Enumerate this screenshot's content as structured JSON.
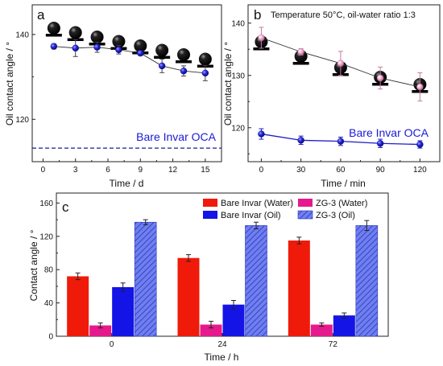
{
  "chart_data": [
    {
      "panel": "a",
      "type": "scatter",
      "xlabel": "Time / d",
      "ylabel": "Oil contact angle / °",
      "xlim": [
        -1,
        16.5
      ],
      "ylim": [
        110,
        147
      ],
      "xticks": [
        0,
        3,
        6,
        9,
        12,
        15
      ],
      "yticks": [
        120,
        140
      ],
      "series": [
        {
          "x": [
            1,
            3,
            5,
            7,
            9,
            11,
            13,
            15
          ],
          "y": [
            137.2,
            136.8,
            137.0,
            136.4,
            135.6,
            132.6,
            131.4,
            130.9
          ],
          "err": [
            0.6,
            2.0,
            1.2,
            1.0,
            0.5,
            1.6,
            1.2,
            1.8
          ],
          "color": "#1c1cc8"
        }
      ],
      "reference_line": {
        "y": 113.2,
        "label": "Bare Invar OCA",
        "color": "#1c1c9a"
      },
      "droplet_icons_at_x": [
        1,
        3,
        5,
        7,
        9,
        11,
        13,
        15
      ]
    },
    {
      "panel": "b",
      "type": "scatter",
      "annotation": "Temperature 50°C, oil-water ratio 1:3",
      "xlabel": "Time / min",
      "ylabel": "Oil contact angle / °",
      "xlim": [
        -10,
        135
      ],
      "ylim": [
        113.5,
        143.5
      ],
      "xticks": [
        0,
        30,
        60,
        90,
        120
      ],
      "yticks": [
        120,
        130,
        140
      ],
      "series": [
        {
          "x": [
            0,
            30,
            60,
            90,
            120
          ],
          "y": [
            137.2,
            134.5,
            132.3,
            129.5,
            127.8
          ],
          "err": [
            2.0,
            0.6,
            2.3,
            2.1,
            2.7
          ],
          "color": "#e8a0c8"
        },
        {
          "x": [
            0,
            30,
            60,
            90,
            120
          ],
          "y": [
            118.8,
            117.6,
            117.4,
            117.0,
            116.8
          ],
          "err": [
            1.0,
            0.8,
            0.8,
            0.8,
            0.7
          ],
          "color": "#1c1cc8"
        }
      ],
      "text_label": "Bare Invar OCA",
      "droplet_icons_at_x": [
        0,
        30,
        60,
        90,
        120
      ]
    },
    {
      "panel": "c",
      "type": "bar",
      "xlabel": "Time / h",
      "ylabel": "Contact angle / °",
      "ylim": [
        0,
        172
      ],
      "yticks": [
        0,
        40,
        80,
        120,
        160
      ],
      "categories": [
        "0",
        "24",
        "72"
      ],
      "series": [
        {
          "name": "Bare Invar (Water)",
          "values": [
            72,
            94,
            115
          ],
          "err": [
            4,
            4,
            4
          ],
          "color": "#f01a0a"
        },
        {
          "name": "ZG-3 (Water)",
          "values": [
            13,
            14,
            14
          ],
          "err": [
            3,
            4,
            2
          ],
          "color": "#e5198c"
        },
        {
          "name": "Bare Invar (Oil)",
          "values": [
            59,
            38,
            25
          ],
          "err": [
            5,
            5,
            3
          ],
          "color": "#1414e6"
        },
        {
          "name": "ZG-3 (Oil)",
          "values": [
            137,
            133,
            133
          ],
          "err": [
            3,
            4,
            6
          ],
          "color": "#5a6ae8",
          "hatched": true
        }
      ],
      "legend_placement": "top"
    }
  ]
}
